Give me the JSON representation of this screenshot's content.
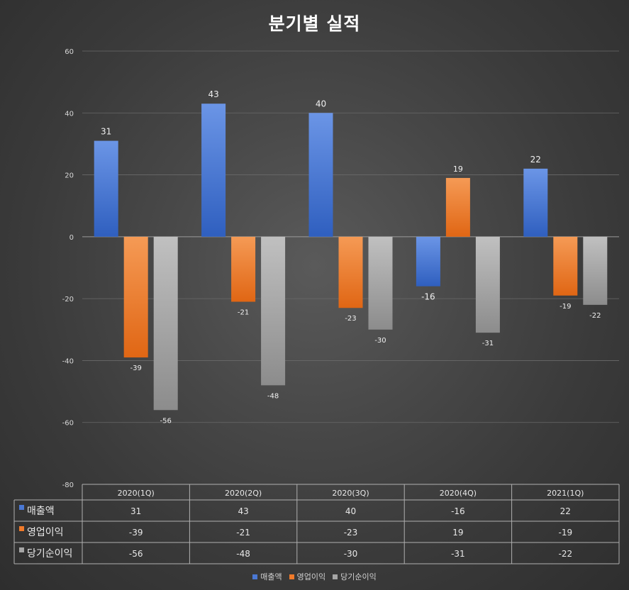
{
  "chart_data": {
    "type": "bar",
    "title": "분기별 실적",
    "categories": [
      "2020(1Q)",
      "2020(2Q)",
      "2020(3Q)",
      "2020(4Q)",
      "2021(1Q)"
    ],
    "series": [
      {
        "name": "매출액",
        "color": "#4a78d4",
        "values": [
          31,
          43,
          40,
          -16,
          22
        ]
      },
      {
        "name": "영업이익",
        "color": "#f07a2a",
        "values": [
          -39,
          -21,
          -23,
          19,
          -19
        ]
      },
      {
        "name": "당기순이익",
        "color": "#a6a6a6",
        "values": [
          -56,
          -48,
          -30,
          -31,
          -22
        ]
      }
    ],
    "ylim": [
      -80,
      60
    ],
    "yticks": [
      60,
      40,
      20,
      0,
      -20,
      -40,
      -60,
      -80
    ],
    "grid": true,
    "legend": "bottom",
    "data_table": true
  }
}
